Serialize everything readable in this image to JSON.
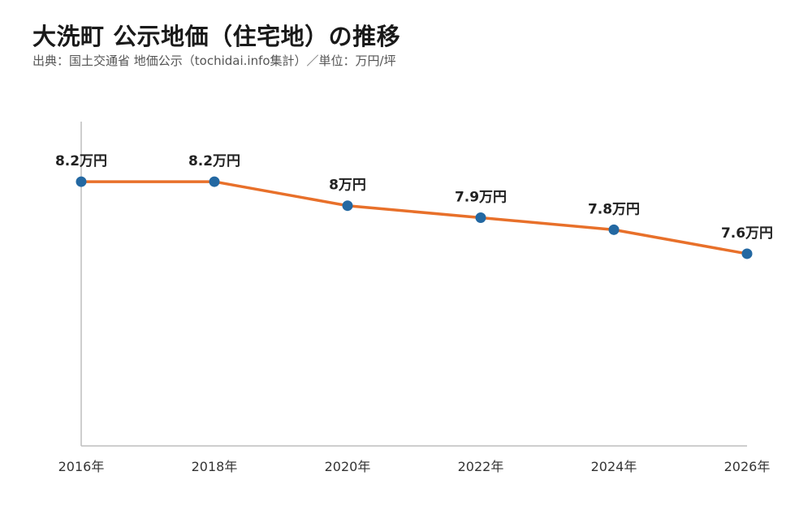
{
  "header": {
    "title": "大洗町 公示地価（住宅地）の推移",
    "subtitle": "出典：国土交通省 地価公示（tochidai.info集計）／単位：万円/坪"
  },
  "chart_data": {
    "type": "line",
    "title": "大洗町 公示地価（住宅地）の推移",
    "subtitle": "出典：国土交通省 地価公示（tochidai.info集計）／単位：万円/坪",
    "xlabel": "",
    "ylabel": "",
    "unit": "万円/坪",
    "x": [
      2016,
      2018,
      2020,
      2022,
      2024,
      2026
    ],
    "tick_labels": [
      "2016年",
      "2018年",
      "2020年",
      "2022年",
      "2024年",
      "2026年"
    ],
    "values": [
      8.2,
      8.2,
      8.0,
      7.9,
      7.8,
      7.6
    ],
    "data_labels": [
      "8.2万円",
      "8.2万円",
      "8万円",
      "7.9万円",
      "7.8万円",
      "7.6万円"
    ],
    "ylim": [
      6.0,
      8.7
    ],
    "grid": false,
    "y_axis_ticks_visible": false,
    "line_color": "#E8702A",
    "marker_color": "#2368A2"
  }
}
